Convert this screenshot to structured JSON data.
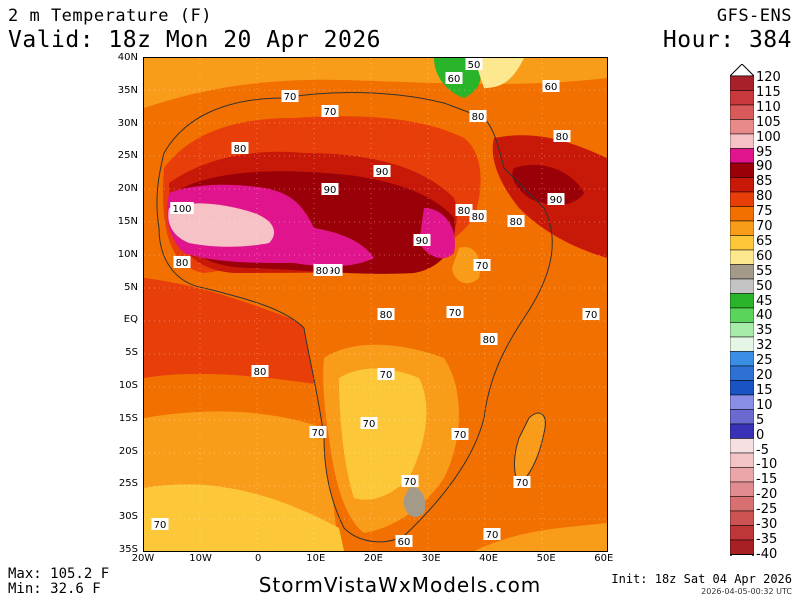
{
  "header": {
    "title": "2 m Temperature (F)",
    "valid": "Valid: 18z Mon 20 Apr 2026",
    "model": "GFS-ENS",
    "hour": "Hour: 384"
  },
  "map": {
    "lat_ticks": [
      "40N",
      "35N",
      "30N",
      "25N",
      "20N",
      "15N",
      "10N",
      "5N",
      "EQ",
      "5S",
      "10S",
      "15S",
      "20S",
      "25S",
      "30S",
      "35S"
    ],
    "lon_ticks": [
      "20W",
      "10W",
      "0",
      "10E",
      "20E",
      "30E",
      "40E",
      "50E",
      "60E"
    ],
    "contour_labels": [
      "50",
      "60",
      "60",
      "70",
      "70",
      "80",
      "80",
      "80",
      "90",
      "90",
      "90",
      "100",
      "80",
      "80",
      "80",
      "80",
      "90",
      "90",
      "70",
      "70",
      "80",
      "80",
      "80",
      "70",
      "70",
      "70",
      "70",
      "70",
      "70",
      "70",
      "80",
      "70",
      "60",
      "70"
    ]
  },
  "colorbar": {
    "levels": [
      "120",
      "115",
      "110",
      "105",
      "100",
      "95",
      "90",
      "85",
      "80",
      "75",
      "70",
      "65",
      "60",
      "55",
      "50",
      "45",
      "40",
      "35",
      "32",
      "25",
      "20",
      "15",
      "10",
      "5",
      "0",
      "-5",
      "-10",
      "-15",
      "-20",
      "-25",
      "-30",
      "-35",
      "-40"
    ],
    "colors": [
      "#a8202a",
      "#c8383c",
      "#d85a5a",
      "#e88a8a",
      "#f6c2c6",
      "#e0148c",
      "#9a0008",
      "#c81808",
      "#e83e0a",
      "#f27000",
      "#f89c1a",
      "#fcc83a",
      "#fde890",
      "#a49a8a",
      "#c4c4c4",
      "#2ab42a",
      "#5ad45a",
      "#a8ecaa",
      "#e6f6e6",
      "#3a8ee6",
      "#2e70d4",
      "#1a54c4",
      "#8a8ee6",
      "#6a6ad0",
      "#3a32b6",
      "#f6e0e2",
      "#f2c4c6",
      "#eaa6a8",
      "#e08c8e",
      "#d87072",
      "#cc5254",
      "#be3638",
      "#a82024"
    ]
  },
  "stats": {
    "max": "Max: 105.2 F",
    "min": "Min: 32.6 F"
  },
  "footer": {
    "site": "StormVistaWxModels.com",
    "init": "Init: 18z Sat 04 Apr 2026",
    "timestamp": "2026-04-05-00:32 UTC"
  }
}
